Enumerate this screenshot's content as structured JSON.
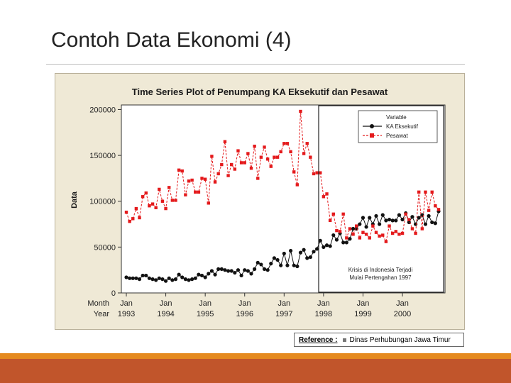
{
  "slide": {
    "title": "Contoh Data Ekonomi (4)"
  },
  "reference": {
    "label": "Reference :",
    "source": "Dinas Perhubungan Jawa Timur"
  },
  "chart_data": {
    "type": "line",
    "title": "Time Series Plot of Penumpang KA Eksekutif dan Pesawat",
    "xlabel": "",
    "ylabel": "Data",
    "ylim": [
      0,
      205000
    ],
    "yticks": [
      0,
      50000,
      100000,
      150000,
      200000
    ],
    "ytick_labels": [
      "0",
      "50000",
      "100000",
      "150000",
      "200000"
    ],
    "x_label_rows": [
      "Month",
      "Year"
    ],
    "x_ticks": [
      {
        "index": 0,
        "month": "Jan",
        "year": "1993"
      },
      {
        "index": 12,
        "month": "Jan",
        "year": "1994"
      },
      {
        "index": 24,
        "month": "Jan",
        "year": "1995"
      },
      {
        "index": 36,
        "month": "Jan",
        "year": "1996"
      },
      {
        "index": 48,
        "month": "Jan",
        "year": "1997"
      },
      {
        "index": 60,
        "month": "Jan",
        "year": "1998"
      },
      {
        "index": 72,
        "month": "Jan",
        "year": "1999"
      },
      {
        "index": 84,
        "month": "Jan",
        "year": "2000"
      }
    ],
    "n_points": 96,
    "legend": {
      "title": "Variable",
      "placement": "top-right"
    },
    "annotation": {
      "lines": [
        "Krisis di Indonesia Terjadi",
        "Mulai Pertengahan 1997"
      ],
      "start_index": 59
    },
    "series": [
      {
        "name": "KA Eksekutif",
        "color": "#111111",
        "marker": "circle",
        "values": [
          17000,
          16000,
          16000,
          16000,
          15000,
          19000,
          19000,
          16000,
          15000,
          14000,
          16000,
          15000,
          13000,
          16000,
          14000,
          15000,
          20000,
          17000,
          15000,
          14000,
          15000,
          16000,
          20000,
          19000,
          17000,
          21000,
          24000,
          20000,
          26000,
          26000,
          25000,
          24000,
          24000,
          22000,
          25000,
          19000,
          25000,
          24000,
          21000,
          26000,
          33000,
          31000,
          26000,
          25000,
          32000,
          38000,
          36000,
          30000,
          43000,
          30000,
          46000,
          30000,
          29000,
          44000,
          47000,
          38000,
          39000,
          45000,
          48000,
          57000,
          50000,
          52000,
          51000,
          63000,
          58000,
          65000,
          55000,
          55000,
          59000,
          70000,
          70000,
          75000,
          82000,
          72000,
          82000,
          75000,
          84000,
          75000,
          85000,
          79000,
          80000,
          79000,
          79000,
          85000,
          80000,
          87000,
          77000,
          83000,
          75000,
          82000,
          85000,
          75000,
          84000,
          77000,
          76000,
          89000
        ]
      },
      {
        "name": "Pesawat",
        "color": "#e41a1c",
        "marker": "square",
        "values": [
          88000,
          78000,
          81000,
          92000,
          82000,
          105000,
          109000,
          95000,
          97000,
          93000,
          113000,
          100000,
          92000,
          115000,
          101000,
          101000,
          134000,
          133000,
          107000,
          122000,
          123000,
          110000,
          110000,
          125000,
          124000,
          98000,
          149000,
          121000,
          130000,
          140000,
          165000,
          128000,
          140000,
          135000,
          155000,
          142000,
          142000,
          152000,
          136000,
          160000,
          125000,
          148000,
          159000,
          146000,
          138000,
          148000,
          148000,
          154000,
          163000,
          163000,
          154000,
          132000,
          118000,
          198000,
          152000,
          163000,
          148000,
          130000,
          131000,
          131000,
          105000,
          108000,
          79000,
          86000,
          68000,
          67000,
          86000,
          60000,
          70000,
          64000,
          73000,
          60000,
          66000,
          64000,
          60000,
          73000,
          66000,
          62000,
          63000,
          56000,
          73000,
          65000,
          67000,
          64000,
          65000,
          86000,
          80000,
          70000,
          65000,
          110000,
          70000,
          110000,
          90000,
          110000,
          95000,
          91000
        ]
      }
    ]
  }
}
